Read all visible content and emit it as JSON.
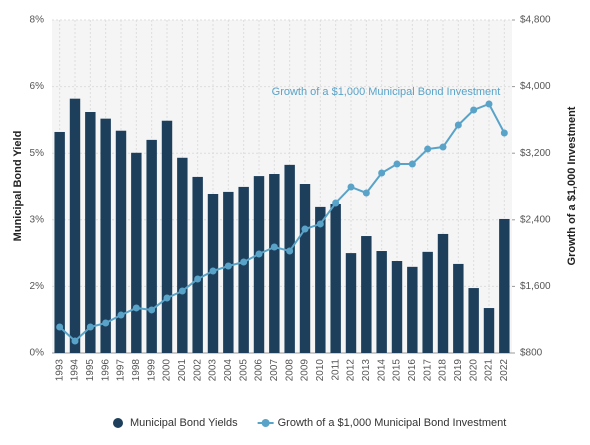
{
  "chart_data": {
    "type": "bar-line",
    "annotation": "Growth of a $1,000 Municipal Bond Investment",
    "y_label": "Municipal Bond Yield",
    "y2_label": "Growth of a $1,000 Investment",
    "categories": [
      "1993",
      "1994",
      "1995",
      "1996",
      "1997",
      "1998",
      "1999",
      "2000",
      "2001",
      "2002",
      "2003",
      "2004",
      "2005",
      "2006",
      "2007",
      "2008",
      "2009",
      "2010",
      "2011",
      "2012",
      "2013",
      "2014",
      "2015",
      "2016",
      "2017",
      "2018",
      "2019",
      "2020",
      "2021",
      "2022"
    ],
    "series": [
      {
        "name": "Municipal Bond Yields",
        "type": "bar",
        "color": "#1d3f5c",
        "values": [
          5.31,
          6.11,
          5.79,
          5.63,
          5.34,
          4.81,
          5.12,
          5.58,
          4.69,
          4.23,
          3.82,
          3.87,
          3.99,
          4.25,
          4.3,
          4.52,
          4.06,
          3.51,
          3.58,
          2.4,
          2.81,
          2.45,
          2.21,
          2.07,
          2.43,
          2.86,
          2.14,
          1.56,
          1.08,
          3.22
        ]
      },
      {
        "name": "Growth of a $1,000 Municipal Bond Investment",
        "type": "line",
        "axis": "y2",
        "color": "#5aa3c8",
        "values": [
          1112,
          944,
          1112,
          1160,
          1256,
          1341,
          1317,
          1461,
          1545,
          1689,
          1785,
          1845,
          1893,
          1989,
          2073,
          2025,
          2289,
          2350,
          2602,
          2794,
          2722,
          2962,
          3070,
          3070,
          3250,
          3274,
          3539,
          3719,
          3791,
          3443
        ]
      }
    ],
    "ylim": [
      0,
      8
    ],
    "yticks": [
      {
        "value": 0,
        "label": "0%"
      },
      {
        "value": 1.6,
        "label": "2%"
      },
      {
        "value": 3.2,
        "label": "3%"
      },
      {
        "value": 4.8,
        "label": "5%"
      },
      {
        "value": 6.4,
        "label": "6%"
      },
      {
        "value": 8,
        "label": "8%"
      }
    ],
    "y2lim": [
      800,
      4800
    ],
    "y2ticks": [
      {
        "value": 800,
        "label": "$800"
      },
      {
        "value": 1600,
        "label": "$1,600"
      },
      {
        "value": 2400,
        "label": "$2,400"
      },
      {
        "value": 3200,
        "label": "$3,200"
      },
      {
        "value": 4000,
        "label": "$4,000"
      },
      {
        "value": 4800,
        "label": "$4,800"
      }
    ],
    "grid": true,
    "legend": "bottom"
  }
}
